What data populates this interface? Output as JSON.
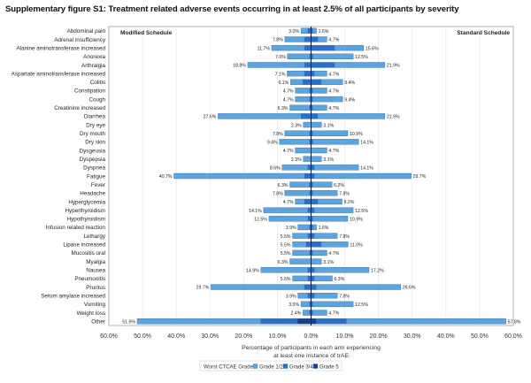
{
  "title": "Supplementary figure S1: Treatment related adverse events occurring in at least 2.5% of all participants by severity",
  "chart_data": {
    "type": "bar",
    "orientation": "horizontal-butterfly",
    "left_panel_label": "Modified Schedule",
    "right_panel_label": "Standard Schedule",
    "xlabel_lines": [
      "Percentage of participants in each arm experiencing",
      "at least one instance of trAE"
    ],
    "x_ticks": [
      "60.0%",
      "50.0%",
      "40.0%",
      "30.0%",
      "20.0%",
      "10.0%",
      "0.0%",
      "10.0%",
      "20.0%",
      "30.0%",
      "40.0%",
      "50.0%",
      "60.0%"
    ],
    "xlim": [
      -60,
      60
    ],
    "legend_title": "Worst CTCAE Grade",
    "series": [
      {
        "name": "Grade 1/2",
        "color": "#5da3dc"
      },
      {
        "name": "Grade 3/4",
        "color": "#2c6fc2"
      },
      {
        "name": "Grade 5",
        "color": "#163f86"
      }
    ],
    "categories": [
      "Abdominal pain",
      "Adrenal insufficiency",
      "Alanine aminotransferase increased",
      "Anorexia",
      "Arthralgia",
      "Aspartate aminotransferase increased",
      "Colitis",
      "Constipation",
      "Cough",
      "Creatinine increased",
      "Diarrhea",
      "Dry eye",
      "Dry mouth",
      "Dry skin",
      "Dysgeusia",
      "Dyspepsia",
      "Dyspnea",
      "Fatigue",
      "Fever",
      "Headache",
      "Hyperglycemia",
      "Hyperthyroidism",
      "Hypothyroidism",
      "Infusion related reaction",
      "Lethargy",
      "Lipase increased",
      "Mucositis oral",
      "Myalgia",
      "Nausea",
      "Pneumonitis",
      "Pruritus",
      "Serum amylase increased",
      "Vomiting",
      "Weight loss",
      "Other"
    ],
    "modified_total": [
      3.0,
      7.8,
      11.7,
      7.0,
      18.8,
      7.1,
      6.1,
      4.7,
      4.7,
      6.3,
      27.6,
      2.3,
      7.8,
      9.4,
      4.7,
      2.3,
      8.6,
      40.7,
      6.3,
      7.8,
      4.7,
      14.1,
      12.5,
      3.9,
      5.5,
      5.5,
      5.5,
      6.3,
      14.9,
      5.5,
      29.7,
      3.9,
      3.0,
      2.4,
      51.6
    ],
    "modified_grade34": [
      1.0,
      2.0,
      2.0,
      0.5,
      2.0,
      2.0,
      2.5,
      0.5,
      0.5,
      0.5,
      3.0,
      0.0,
      0.5,
      0.5,
      0.0,
      0.0,
      1.0,
      2.0,
      0.5,
      0.5,
      2.0,
      1.0,
      1.0,
      0.5,
      1.0,
      1.5,
      0.5,
      0.0,
      1.0,
      1.0,
      2.0,
      1.0,
      0.5,
      0.5,
      11.0
    ],
    "modified_grade5": [
      0,
      0,
      0,
      0,
      0,
      0,
      0,
      0,
      0,
      0,
      0,
      0,
      0,
      0,
      0,
      0,
      0,
      0,
      0,
      0,
      0,
      0,
      0,
      0,
      0,
      0,
      0,
      0,
      0,
      0,
      0,
      0,
      0,
      0,
      4.0
    ],
    "standard_total": [
      1.6,
      4.7,
      15.6,
      12.5,
      21.9,
      4.7,
      9.4,
      4.7,
      9.4,
      4.7,
      21.9,
      3.1,
      10.9,
      14.1,
      4.7,
      3.1,
      14.1,
      29.7,
      6.2,
      7.8,
      9.2,
      12.5,
      10.9,
      1.6,
      7.8,
      11.0,
      4.7,
      3.1,
      17.2,
      6.3,
      26.6,
      7.8,
      12.5,
      4.7,
      57.8
    ],
    "standard_grade34": [
      0.5,
      2.0,
      7.0,
      0.5,
      7.0,
      1.0,
      3.0,
      0.5,
      0.5,
      0.5,
      2.0,
      0.0,
      0.5,
      0.5,
      0.0,
      0.0,
      1.0,
      1.0,
      0.5,
      0.5,
      2.0,
      1.0,
      0.5,
      0.5,
      1.0,
      3.0,
      0.5,
      0.0,
      1.0,
      1.0,
      1.5,
      1.0,
      0.5,
      0.5,
      9.0
    ],
    "standard_grade5": [
      0,
      0,
      0,
      0,
      0,
      0,
      0,
      0,
      0,
      0,
      0,
      0,
      0,
      0,
      0,
      0,
      0,
      0,
      0,
      0,
      0,
      0,
      0,
      0,
      0,
      0,
      0,
      0,
      0,
      0,
      0,
      0,
      0,
      0,
      1.5
    ],
    "modified_labels": [
      "3.0%",
      "7.8%",
      "11.7%",
      "7.0%",
      "18.8%",
      "7.1%",
      "6.1%",
      "4.7%",
      "4.7%",
      "6.3%",
      "27.6%",
      "2.3%",
      "7.8%",
      "9.4%",
      "4.7%",
      "2.3%",
      "8.6%",
      "40.7%",
      "6.3%",
      "7.8%",
      "4.7%",
      "14.1%",
      "12.5%",
      "3.9%",
      "5.5%",
      "5.5%",
      "5.5%",
      "6.3%",
      "14.9%",
      "5.5%",
      "29.7%",
      "3.9%",
      "3.0%",
      "2.4%",
      "51.6%"
    ],
    "standard_labels": [
      "1.6%",
      "4.7%",
      "15.6%",
      "12.5%",
      "21.9%",
      "4.7%",
      "9.4%",
      "4.7%",
      "9.4%",
      "4.7%",
      "21.9%",
      "3.1%",
      "10.9%",
      "14.1%",
      "4.7%",
      "3.1%",
      "14.1%",
      "29.7%",
      "6.2%",
      "7.8%",
      "9.2%",
      "12.5%",
      "10.9%",
      "1.6%",
      "7.8%",
      "11.0%",
      "4.7%",
      "3.1%",
      "17.2%",
      "6.3%",
      "26.6%",
      "7.8%",
      "12.5%",
      "4.7%",
      "57.8%"
    ]
  }
}
